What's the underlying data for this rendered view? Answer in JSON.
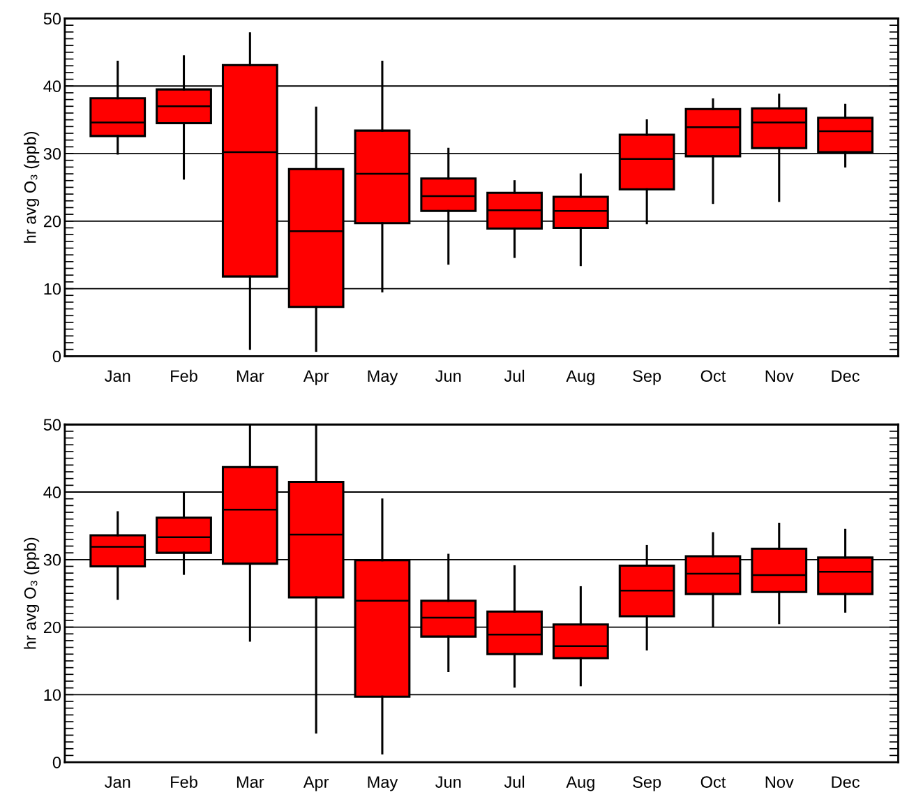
{
  "chart_data": [
    {
      "type": "box",
      "ylabel": "hr avg O₃ (ppb)",
      "categories": [
        "Jan",
        "Feb",
        "Mar",
        "Apr",
        "May",
        "Jun",
        "Jul",
        "Aug",
        "Sep",
        "Oct",
        "Nov",
        "Dec"
      ],
      "color": "#ff0000",
      "ylim": [
        0,
        50
      ],
      "yticks": [
        0,
        10,
        20,
        30,
        40,
        50
      ],
      "grid": "y",
      "boxes": [
        {
          "low": 30.0,
          "q1": 32.6,
          "median": 34.6,
          "q3": 38.2,
          "high": 43.6
        },
        {
          "low": 26.3,
          "q1": 34.5,
          "median": 37.0,
          "q3": 39.5,
          "high": 44.4
        },
        {
          "low": 1.1,
          "q1": 11.8,
          "median": 30.2,
          "q3": 43.1,
          "high": 47.8
        },
        {
          "low": 0.8,
          "q1": 7.3,
          "median": 18.5,
          "q3": 27.7,
          "high": 36.8
        },
        {
          "low": 9.6,
          "q1": 19.7,
          "median": 27.0,
          "q3": 33.4,
          "high": 43.6
        },
        {
          "low": 13.7,
          "q1": 21.5,
          "median": 23.7,
          "q3": 26.3,
          "high": 30.7
        },
        {
          "low": 14.7,
          "q1": 18.9,
          "median": 21.6,
          "q3": 24.2,
          "high": 25.9
        },
        {
          "low": 13.5,
          "q1": 19.0,
          "median": 21.5,
          "q3": 23.6,
          "high": 26.9
        },
        {
          "low": 19.7,
          "q1": 24.7,
          "median": 29.2,
          "q3": 32.8,
          "high": 34.9
        },
        {
          "low": 22.7,
          "q1": 29.6,
          "median": 33.9,
          "q3": 36.6,
          "high": 38.0
        },
        {
          "low": 23.0,
          "q1": 30.8,
          "median": 34.6,
          "q3": 36.7,
          "high": 38.7
        },
        {
          "low": 28.1,
          "q1": 30.2,
          "median": 33.3,
          "q3": 35.3,
          "high": 37.2
        }
      ]
    },
    {
      "type": "box",
      "ylabel": "hr avg O₃ (ppb)",
      "categories": [
        "Jan",
        "Feb",
        "Mar",
        "Apr",
        "May",
        "Jun",
        "Jul",
        "Aug",
        "Sep",
        "Oct",
        "Nov",
        "Dec"
      ],
      "color": "#ff0000",
      "ylim": [
        0,
        50
      ],
      "yticks": [
        0,
        10,
        20,
        30,
        40,
        50
      ],
      "grid": "y",
      "boxes": [
        {
          "low": 24.2,
          "q1": 29.0,
          "median": 31.9,
          "q3": 33.6,
          "high": 37.0
        },
        {
          "low": 27.9,
          "q1": 31.0,
          "median": 33.3,
          "q3": 36.2,
          "high": 39.9
        },
        {
          "low": 18.0,
          "q1": 29.4,
          "median": 37.4,
          "q3": 43.7,
          "high": 50
        },
        {
          "low": 4.4,
          "q1": 24.4,
          "median": 33.7,
          "q3": 41.5,
          "high": 50
        },
        {
          "low": 1.3,
          "q1": 9.7,
          "median": 23.9,
          "q3": 29.9,
          "high": 38.9
        },
        {
          "low": 13.5,
          "q1": 18.6,
          "median": 21.4,
          "q3": 23.9,
          "high": 30.7
        },
        {
          "low": 11.2,
          "q1": 16.0,
          "median": 18.9,
          "q3": 22.3,
          "high": 29.0
        },
        {
          "low": 11.4,
          "q1": 15.4,
          "median": 17.2,
          "q3": 20.4,
          "high": 25.9
        },
        {
          "low": 16.7,
          "q1": 21.6,
          "median": 25.4,
          "q3": 29.1,
          "high": 32.0
        },
        {
          "low": 20.1,
          "q1": 24.9,
          "median": 27.9,
          "q3": 30.5,
          "high": 33.9
        },
        {
          "low": 20.6,
          "q1": 25.2,
          "median": 27.7,
          "q3": 31.6,
          "high": 35.3
        },
        {
          "low": 22.3,
          "q1": 24.9,
          "median": 28.2,
          "q3": 30.3,
          "high": 34.4
        }
      ]
    }
  ]
}
